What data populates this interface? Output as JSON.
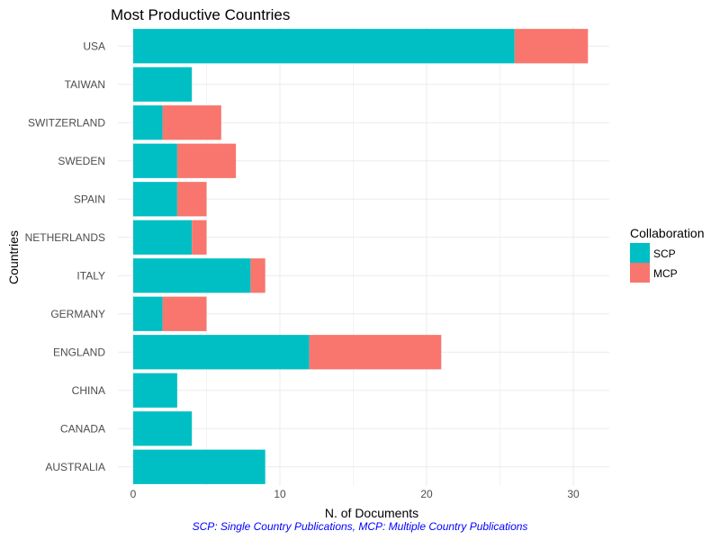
{
  "chart_data": {
    "type": "bar",
    "orientation": "horizontal",
    "stacked": true,
    "title": "Most Productive Countries",
    "xlabel": "N. of Documents",
    "ylabel": "Countries",
    "caption": "SCP: Single Country Publications, MCP: Multiple Country Publications",
    "categories": [
      "AUSTRALIA",
      "CANADA",
      "CHINA",
      "ENGLAND",
      "GERMANY",
      "ITALY",
      "NETHERLANDS",
      "SPAIN",
      "SWEDEN",
      "SWITZERLAND",
      "TAIWAN",
      "USA"
    ],
    "series": [
      {
        "name": "SCP",
        "color": "#00BFC4",
        "values": [
          9,
          4,
          3,
          12,
          2,
          8,
          4,
          3,
          3,
          2,
          4,
          26
        ]
      },
      {
        "name": "MCP",
        "color": "#F8766D",
        "values": [
          0,
          0,
          0,
          9,
          3,
          1,
          1,
          2,
          4,
          4,
          0,
          5
        ]
      }
    ],
    "xlim": [
      0,
      32.5
    ],
    "xticks": [
      0,
      10,
      20,
      30
    ],
    "x_minor_ticks": [
      5,
      15,
      25
    ],
    "grid": true,
    "legend": {
      "title": "Collaboration",
      "position": "right",
      "entries": [
        "SCP",
        "MCP"
      ]
    }
  }
}
